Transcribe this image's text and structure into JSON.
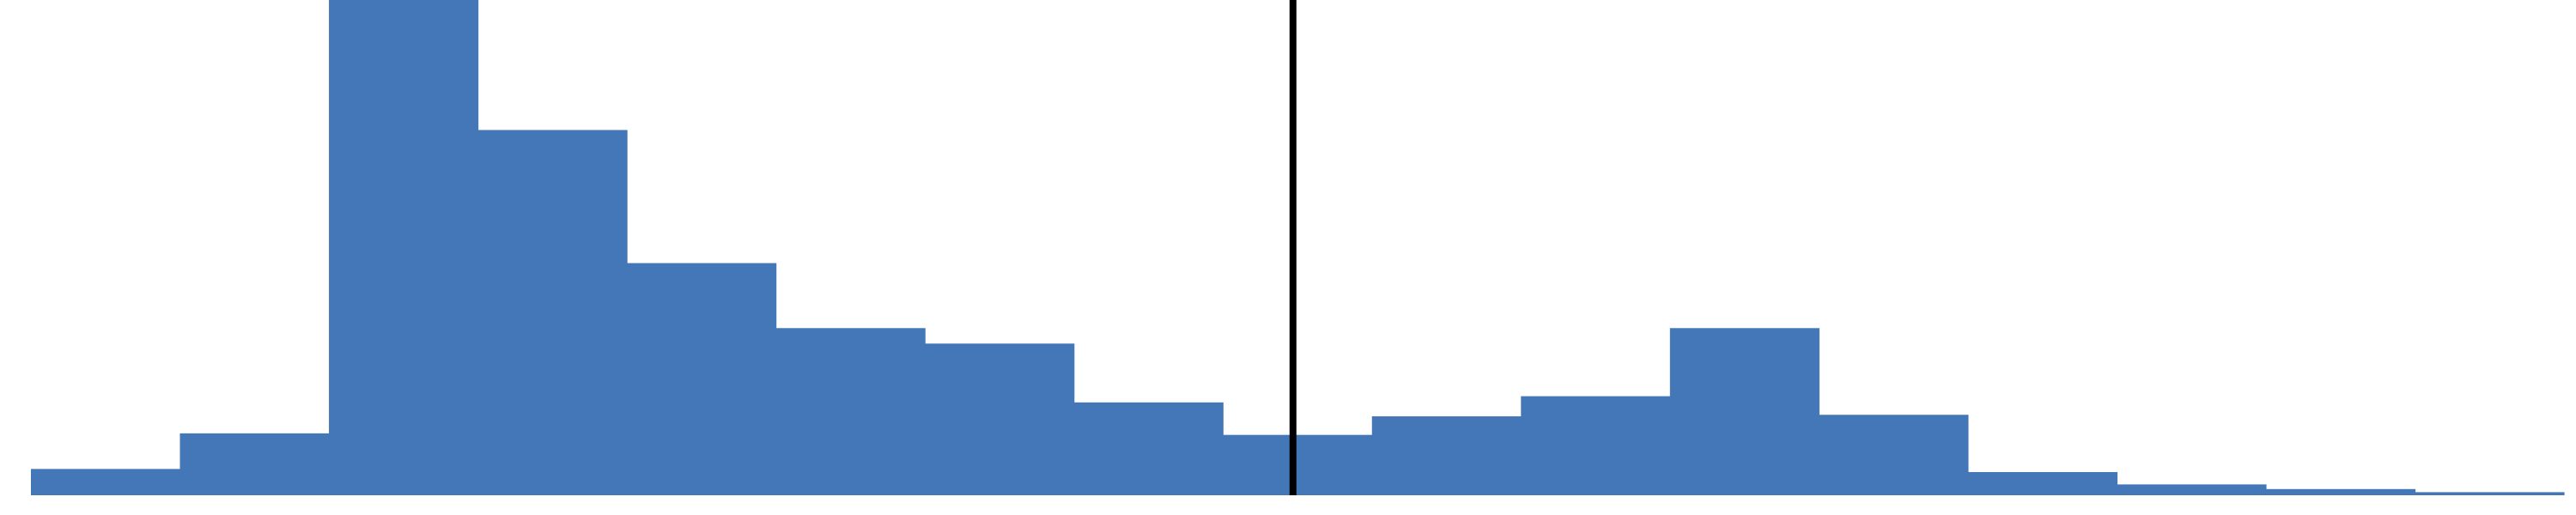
{
  "chart_data": {
    "type": "bar",
    "variant": "histogram",
    "title": "",
    "xlabel": "",
    "ylabel": "",
    "bins": 17,
    "values": [
      8.5,
      20,
      160,
      118,
      75,
      54,
      49,
      30,
      19.5,
      25.5,
      32,
      54,
      26,
      7.5,
      3.5,
      2,
      1
    ],
    "ylim": [
      0,
      160
    ],
    "reference_line": {
      "bin_position": 8.47
    },
    "grid": false,
    "legend": "none",
    "axis_tick_labels_visible": false,
    "colors": {
      "bar": "#4477b7",
      "reference_line": "#000000",
      "background": "#ffffff"
    }
  }
}
